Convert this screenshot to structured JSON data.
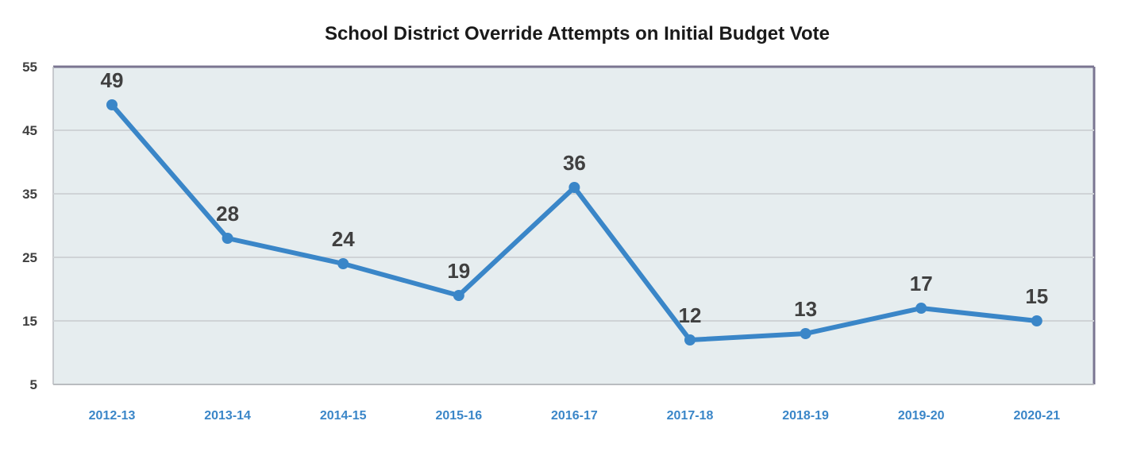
{
  "chart_data": {
    "type": "line",
    "title": "School District Override Attempts on Initial Budget Vote",
    "categories": [
      "2012-13",
      "2013-14",
      "2014-15",
      "2015-16",
      "2016-17",
      "2017-18",
      "2018-19",
      "2019-20",
      "2020-21"
    ],
    "values": [
      49,
      28,
      24,
      19,
      36,
      12,
      13,
      17,
      15
    ],
    "y_ticks": [
      55,
      45,
      35,
      25,
      15,
      5
    ],
    "ylim": [
      5,
      55
    ],
    "xlabel": "",
    "ylabel": "",
    "grid": true,
    "legend": "none",
    "colors": {
      "line": "#3a86c8",
      "plot_background": "#e6edef",
      "grid": "#cfd3d6",
      "frame": "#7a7591",
      "tick_label_x": "#3a86c8",
      "tick_label_y": "#404040"
    }
  }
}
